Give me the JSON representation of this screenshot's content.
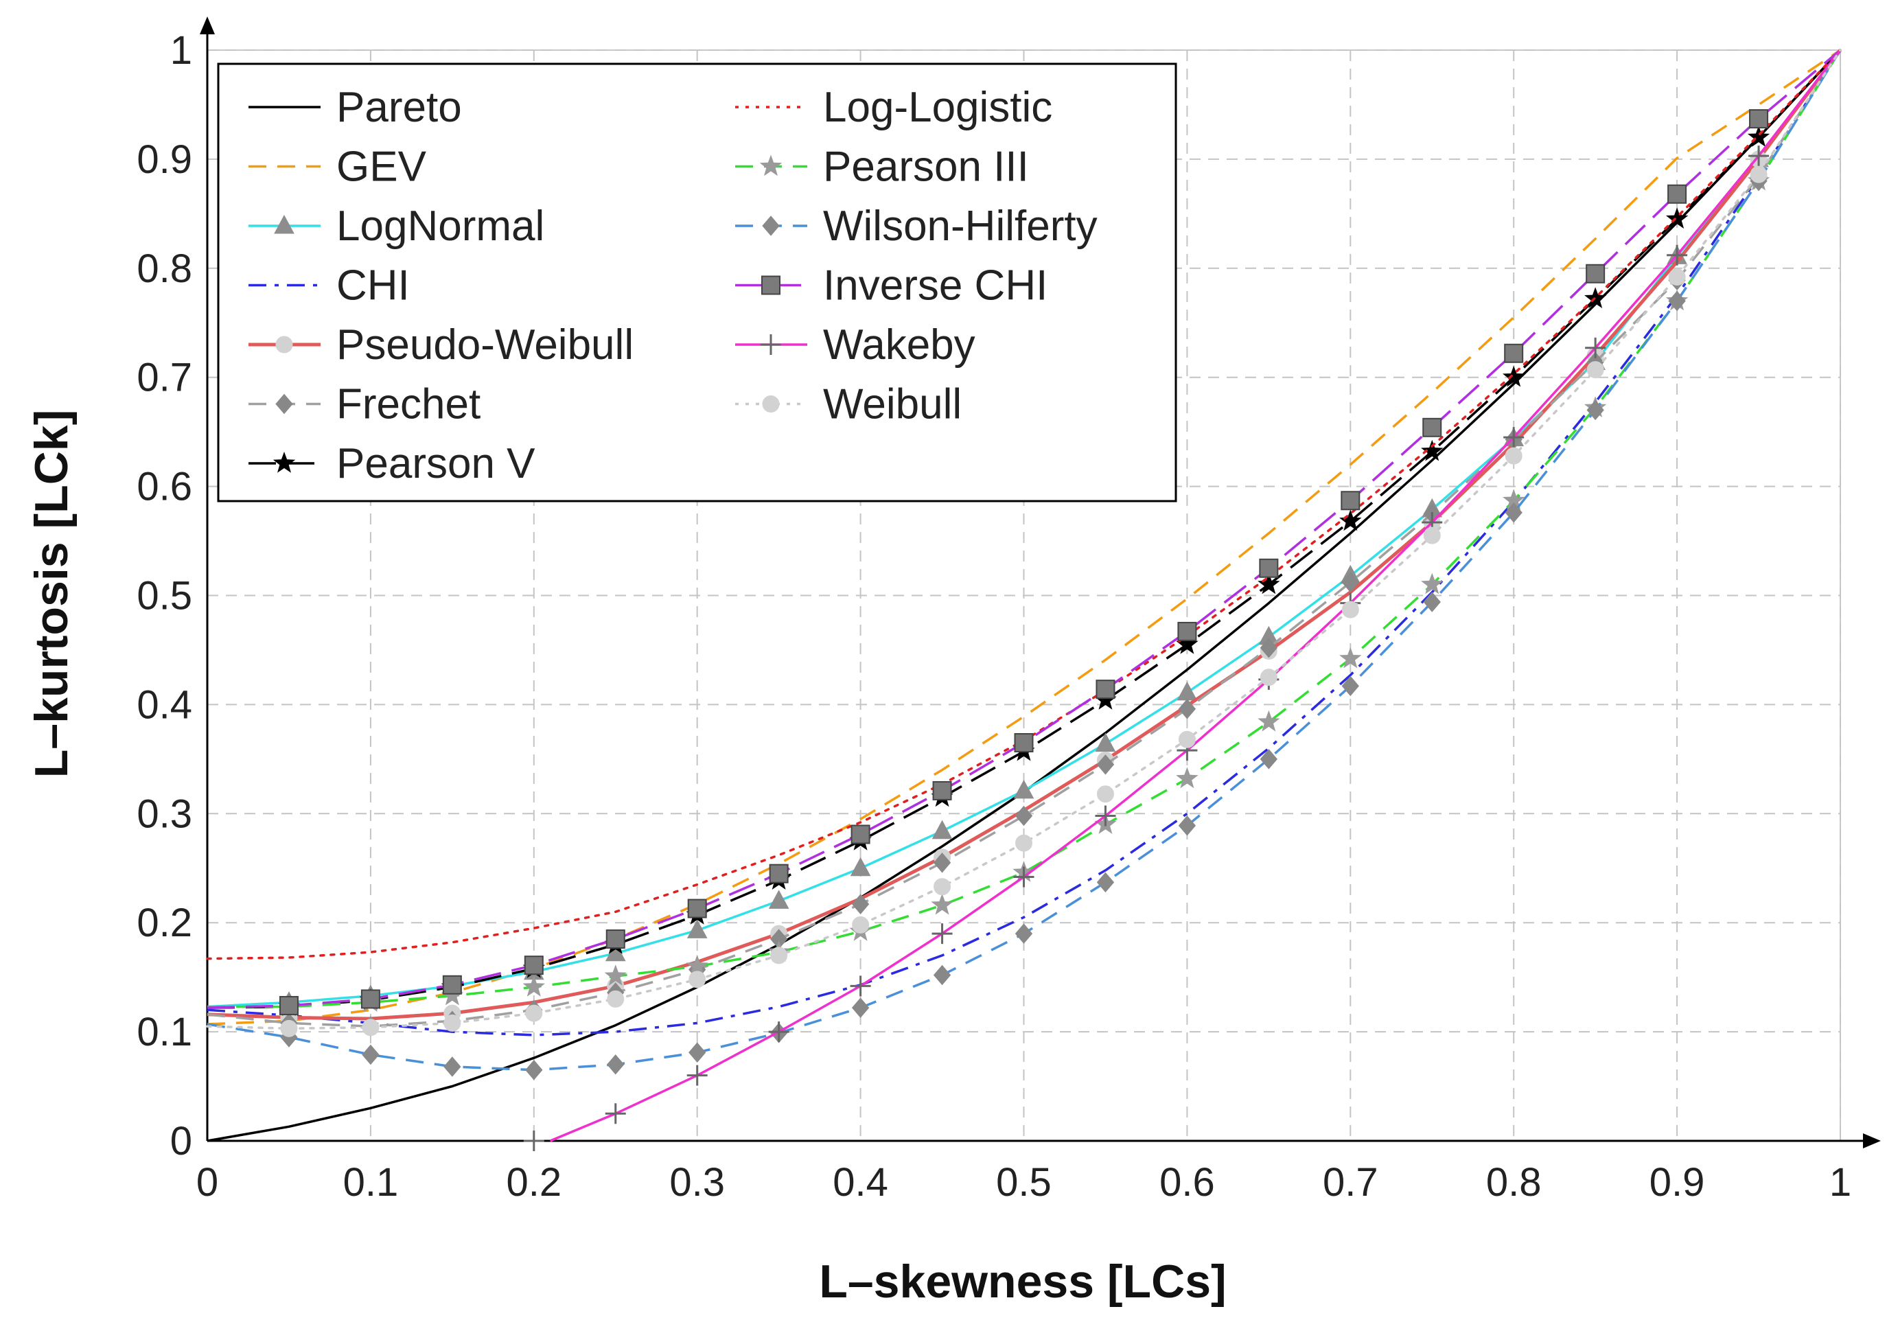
{
  "chart_data": {
    "type": "line",
    "title": "",
    "xlabel": "L–skewness [LCs]",
    "ylabel": "L–kurtosis [LCk]",
    "xlim": [
      0,
      1
    ],
    "ylim": [
      0,
      1
    ],
    "xticks": [
      "0",
      "0.1",
      "0.2",
      "0.3",
      "0.4",
      "0.5",
      "0.6",
      "0.7",
      "0.8",
      "0.9",
      "1"
    ],
    "yticks": [
      "0",
      "0.1",
      "0.2",
      "0.3",
      "0.4",
      "0.5",
      "0.6",
      "0.7",
      "0.8",
      "0.9",
      "1"
    ],
    "grid": true,
    "legend_placement": "top-left",
    "x": [
      0,
      0.05,
      0.1,
      0.15,
      0.2,
      0.25,
      0.3,
      0.35,
      0.4,
      0.45,
      0.5,
      0.55,
      0.6,
      0.65,
      0.7,
      0.75,
      0.8,
      0.85,
      0.9,
      0.95,
      1
    ],
    "series": [
      {
        "name": "Pareto",
        "color": "#000000",
        "dash": "solid",
        "marker": "none",
        "values": [
          0,
          0.013,
          0.03,
          0.05,
          0.076,
          0.106,
          0.141,
          0.18,
          0.223,
          0.27,
          0.32,
          0.374,
          0.432,
          0.493,
          0.557,
          0.624,
          0.694,
          0.767,
          0.842,
          0.92,
          1
        ]
      },
      {
        "name": "GEV",
        "color": "#f39c12",
        "dash": "dashed",
        "marker": "none",
        "values": [
          0.107,
          0.11,
          0.12,
          0.136,
          0.158,
          0.185,
          0.217,
          0.254,
          0.295,
          0.34,
          0.389,
          0.441,
          0.497,
          0.557,
          0.62,
          0.686,
          0.755,
          0.827,
          0.901,
          0.95,
          1
        ]
      },
      {
        "name": "LogNormal",
        "color": "#33e0e8",
        "dash": "solid",
        "marker": "triangle",
        "values": [
          0.123,
          0.127,
          0.133,
          0.142,
          0.155,
          0.172,
          0.193,
          0.22,
          0.25,
          0.284,
          0.321,
          0.364,
          0.411,
          0.462,
          0.518,
          0.579,
          0.644,
          0.714,
          0.811,
          0.9,
          1
        ]
      },
      {
        "name": "CHI",
        "color": "#2a2ae0",
        "dash": "dashdot",
        "marker": "none",
        "values": [
          0.12,
          0.115,
          0.108,
          0.1,
          0.097,
          0.1,
          0.108,
          0.123,
          0.143,
          0.17,
          0.205,
          0.248,
          0.3,
          0.36,
          0.427,
          0.503,
          0.586,
          0.677,
          0.775,
          0.884,
          1
        ]
      },
      {
        "name": "Pseudo-Weibull",
        "color": "#e05a5a",
        "dash": "solid",
        "marker": "circle",
        "values": [
          0.116,
          0.113,
          0.112,
          0.117,
          0.127,
          0.142,
          0.164,
          0.19,
          0.222,
          0.26,
          0.303,
          0.349,
          0.399,
          0.449,
          0.503,
          0.567,
          0.639,
          0.72,
          0.806,
          0.9,
          1
        ]
      },
      {
        "name": "Frechet",
        "color": "#a0a0a0",
        "dash": "dashed",
        "marker": "diamond",
        "values": [
          0.116,
          0.108,
          0.105,
          0.11,
          0.12,
          0.136,
          0.157,
          0.185,
          0.217,
          0.255,
          0.298,
          0.345,
          0.396,
          0.452,
          0.512,
          0.575,
          0.643,
          0.714,
          0.789,
          0.884,
          1
        ]
      },
      {
        "name": "Pearson V",
        "color": "#000000",
        "dash": "longdash",
        "marker": "star",
        "values": [
          0.122,
          0.123,
          0.129,
          0.141,
          0.158,
          0.18,
          0.207,
          0.239,
          0.275,
          0.315,
          0.357,
          0.404,
          0.455,
          0.51,
          0.568,
          0.632,
          0.7,
          0.772,
          0.845,
          0.92,
          1
        ]
      },
      {
        "name": "Log-Logistic",
        "color": "#e02020",
        "dash": "dotted",
        "marker": "none",
        "values": [
          0.167,
          0.168,
          0.173,
          0.182,
          0.195,
          0.21,
          0.235,
          0.262,
          0.292,
          0.327,
          0.367,
          0.413,
          0.463,
          0.517,
          0.575,
          0.637,
          0.703,
          0.773,
          0.847,
          0.922,
          1
        ]
      },
      {
        "name": "Pearson III",
        "color": "#33dd33",
        "dash": "dashed",
        "marker": "star",
        "values": [
          0.123,
          0.123,
          0.127,
          0.133,
          0.141,
          0.151,
          0.16,
          0.173,
          0.192,
          0.216,
          0.246,
          0.29,
          0.332,
          0.384,
          0.442,
          0.51,
          0.587,
          0.672,
          0.77,
          0.88,
          1
        ]
      },
      {
        "name": "Wilson-Hilferty",
        "color": "#4a90d9",
        "dash": "dashed",
        "marker": "diamond",
        "values": [
          0.107,
          0.095,
          0.079,
          0.068,
          0.065,
          0.07,
          0.081,
          0.099,
          0.122,
          0.152,
          0.19,
          0.237,
          0.289,
          0.35,
          0.417,
          0.494,
          0.576,
          0.67,
          0.77,
          0.88,
          1
        ]
      },
      {
        "name": "Inverse CHI",
        "color": "#b030e0",
        "dash": "longdash",
        "marker": "square",
        "values": [
          0.122,
          0.124,
          0.13,
          0.143,
          0.161,
          0.185,
          0.213,
          0.245,
          0.281,
          0.321,
          0.365,
          0.414,
          0.467,
          0.525,
          0.587,
          0.654,
          0.722,
          0.795,
          0.868,
          0.937,
          1
        ]
      },
      {
        "name": "Wakeby",
        "color": "#ee30cc",
        "dash": "solid",
        "marker": "plus",
        "values": [
          null,
          null,
          null,
          null,
          0,
          0.025,
          0.06,
          0.1,
          0.142,
          0.19,
          0.242,
          0.298,
          0.358,
          0.423,
          0.493,
          0.567,
          0.645,
          0.727,
          0.812,
          0.903,
          1
        ]
      },
      {
        "name": "Weibull",
        "color": "#c8c8c8",
        "dash": "dotted",
        "marker": "circle",
        "values": [
          0.105,
          0.103,
          0.104,
          0.108,
          0.117,
          0.13,
          0.148,
          0.17,
          0.198,
          0.233,
          0.273,
          0.318,
          0.368,
          0.425,
          0.487,
          0.555,
          0.628,
          0.707,
          0.792,
          0.886,
          1
        ]
      }
    ]
  }
}
